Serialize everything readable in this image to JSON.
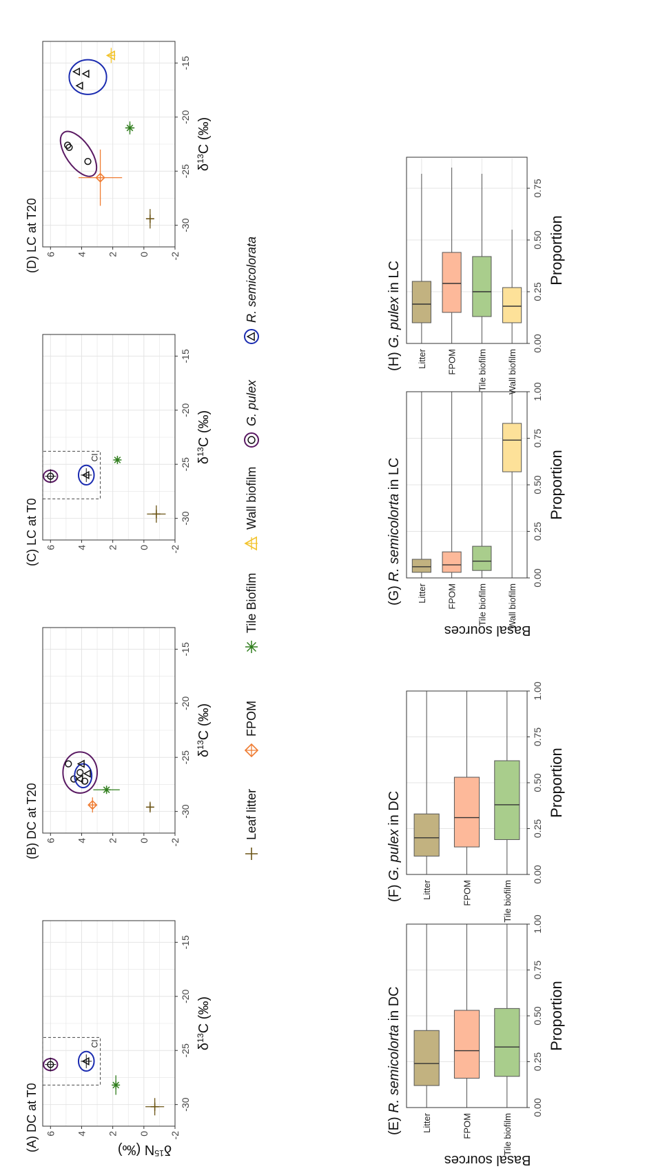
{
  "colors": {
    "litter": "#6b5415",
    "fpom": "#ef7c32",
    "tile": "#2f7d1c",
    "wall": "#f2c32c",
    "rsemi_ellipse": "#1a2bb0",
    "gpulex_ellipse": "#5a1a63",
    "box_litter": "#c2b280",
    "box_fpom": "#fdb99a",
    "box_tile": "#a9cd8c",
    "box_wall": "#fde199"
  },
  "figure": {
    "ylabel": "δ15N (‰)",
    "xlabel": "δ13C (‰)",
    "box_ylabel": "Basal sources",
    "box_xlabel": "Proportion",
    "ci_label": "CI"
  },
  "legend": {
    "items": [
      {
        "key": "litter",
        "label": "Leaf litter"
      },
      {
        "key": "fpom",
        "label": "FPOM"
      },
      {
        "key": "tile",
        "label": "Tile Biofilm"
      },
      {
        "key": "wall",
        "label": "Wall biofilm"
      },
      {
        "key": "gpulex",
        "label": "G. pulex"
      },
      {
        "key": "rsemi",
        "label": "R. semicolorata"
      }
    ]
  },
  "chart_data": [
    {
      "type": "scatter",
      "panel": "A",
      "title": "(A) DC at T0",
      "xlabel": "δ13C (‰)",
      "ylabel": "δ15N (‰)",
      "xlim": [
        -32,
        -13
      ],
      "ylim": [
        -2,
        6.5
      ],
      "xticks": [
        -30,
        -25,
        -20,
        -15
      ],
      "yticks": [
        -2,
        0,
        2,
        4,
        6
      ],
      "ci_box": {
        "x": [
          -28.2,
          -23.8
        ],
        "y": [
          2.8,
          6.5
        ],
        "label": "CI"
      },
      "sources": [
        {
          "name": "Leaf litter",
          "key": "litter",
          "x": -30.2,
          "y": -0.7,
          "xerr": 0.8,
          "yerr": 0.6
        },
        {
          "name": "Tile Biofilm",
          "key": "tile",
          "x": -28.2,
          "y": 1.8,
          "xerr": 0.9,
          "yerr": 0.15
        }
      ],
      "consumers": [
        {
          "name": "G. pulex",
          "key": "gpulex",
          "x": -26.3,
          "y": 6.0,
          "rx": 0.55,
          "ry": 0.45
        },
        {
          "name": "R. semicolorata",
          "key": "rsemi",
          "x": -26.0,
          "y": 3.7,
          "rx": 0.9,
          "ry": 0.5
        }
      ]
    },
    {
      "type": "scatter",
      "panel": "B",
      "title": "(B) DC at T20",
      "xlabel": "δ13C (‰)",
      "xlim": [
        -32,
        -13
      ],
      "ylim": [
        -2,
        6.5
      ],
      "xticks": [
        -30,
        -25,
        -20,
        -15
      ],
      "yticks": [
        -2,
        0,
        2,
        4,
        6
      ],
      "sources": [
        {
          "name": "Leaf litter",
          "key": "litter",
          "x": -29.6,
          "y": -0.4,
          "xerr": 0.5,
          "yerr": 0.15
        },
        {
          "name": "FPOM",
          "key": "fpom",
          "x": -29.4,
          "y": 3.3,
          "xerr": 0.7,
          "yerr": 0.2
        },
        {
          "name": "Tile Biofilm",
          "key": "tile",
          "x": -28.0,
          "y": 2.4,
          "xerr": 0.3,
          "yerr": 0.85
        }
      ],
      "consumers": [
        {
          "name": "G. pulex",
          "key": "gpulex",
          "x": -26.4,
          "y": 4.1,
          "rx": 1.9,
          "ry": 1.1,
          "points": [
            [
              -27.0,
              4.5
            ],
            [
              -27.2,
              3.8
            ],
            [
              -26.4,
              4.1
            ]
          ]
        },
        {
          "name": "R. semicolorata",
          "key": "rsemi",
          "x": -26.7,
          "y": 3.9,
          "rx": 1.1,
          "ry": 0.55,
          "points": [
            [
              -27.0,
              4.1
            ],
            [
              -26.5,
              3.6
            ],
            [
              -25.6,
              4.0
            ]
          ]
        }
      ],
      "extra_gpulex_points": [
        [
          -25.6,
          4.85
        ]
      ]
    },
    {
      "type": "scatter",
      "panel": "C",
      "title": "(C) LC at T0",
      "xlabel": "δ13C (‰)",
      "xlim": [
        -32,
        -13
      ],
      "ylim": [
        -2,
        6.5
      ],
      "xticks": [
        -30,
        -25,
        -20,
        -15
      ],
      "yticks": [
        -2,
        0,
        2,
        4,
        6
      ],
      "ci_box": {
        "x": [
          -28.2,
          -23.8
        ],
        "y": [
          2.8,
          6.5
        ],
        "label": "CI"
      },
      "sources": [
        {
          "name": "Leaf litter",
          "key": "litter",
          "x": -29.6,
          "y": -0.8,
          "xerr": 0.8,
          "yerr": 0.6
        },
        {
          "name": "Tile Biofilm",
          "key": "tile",
          "x": -24.6,
          "y": 1.7,
          "xerr": 0.2,
          "yerr": 0.15
        }
      ],
      "consumers": [
        {
          "name": "G. pulex",
          "key": "gpulex",
          "x": -26.1,
          "y": 6.0,
          "rx": 0.55,
          "ry": 0.45
        },
        {
          "name": "R. semicolorata",
          "key": "rsemi",
          "x": -26.0,
          "y": 3.7,
          "rx": 0.9,
          "ry": 0.5
        }
      ]
    },
    {
      "type": "scatter",
      "panel": "D",
      "title": "(D) LC at T20",
      "xlabel": "δ13C (‰)",
      "xlim": [
        -32,
        -13
      ],
      "ylim": [
        -2,
        6.5
      ],
      "xticks": [
        -30,
        -25,
        -20,
        -15
      ],
      "yticks": [
        -2,
        0,
        2,
        4,
        6
      ],
      "sources": [
        {
          "name": "Leaf litter",
          "key": "litter",
          "x": -29.4,
          "y": -0.4,
          "xerr": 0.9,
          "yerr": 0.1
        },
        {
          "name": "FPOM",
          "key": "fpom",
          "x": -25.6,
          "y": 2.8,
          "xerr": 2.6,
          "yerr": 1.4
        },
        {
          "name": "Tile Biofilm",
          "key": "tile",
          "x": -21.0,
          "y": 0.9,
          "xerr": 0.6,
          "yerr": 0.3
        },
        {
          "name": "Wall biofilm",
          "key": "wall",
          "x": -14.3,
          "y": 2.1,
          "xerr": 0.7,
          "yerr": 0.1
        }
      ],
      "consumers": [
        {
          "name": "G. pulex",
          "key": "gpulex",
          "x": -23.4,
          "y": 4.2,
          "rx": 2.4,
          "ry": 0.8,
          "rotate": -35,
          "points": [
            [
              -22.6,
              4.9
            ],
            [
              -22.8,
              4.8
            ],
            [
              -24.1,
              3.6
            ]
          ]
        },
        {
          "name": "R. semicolorata",
          "key": "rsemi",
          "x": -16.3,
          "y": 3.6,
          "rx": 1.6,
          "ry": 1.2,
          "points": [
            [
              -17.1,
              4.1
            ],
            [
              -15.8,
              4.3
            ],
            [
              -16.0,
              3.7
            ]
          ]
        }
      ]
    },
    {
      "type": "box",
      "panel": "E",
      "title": "(E) R. semicolorta in DC",
      "xlabel": "Proportion",
      "ylabel": "Basal sources",
      "xlim": [
        0,
        1
      ],
      "xticks": [
        0.0,
        0.25,
        0.5,
        0.75,
        1.0
      ],
      "xticklabels": [
        "0.00",
        "0.25",
        "0.50",
        "0.75",
        "1.00"
      ],
      "boxes": [
        {
          "name": "Litter",
          "key": "box_litter",
          "q1": 0.12,
          "median": 0.24,
          "q3": 0.42,
          "min": 0.0,
          "max": 1.0
        },
        {
          "name": "FPOM",
          "key": "box_fpom",
          "q1": 0.16,
          "median": 0.31,
          "q3": 0.53,
          "min": 0.0,
          "max": 1.0
        },
        {
          "name": "Tile biofilm",
          "key": "box_tile",
          "q1": 0.17,
          "median": 0.33,
          "q3": 0.54,
          "min": 0.0,
          "max": 1.0
        }
      ]
    },
    {
      "type": "box",
      "panel": "F",
      "title": "(F) G. pulex in DC",
      "xlabel": "Proportion",
      "xlim": [
        0,
        1
      ],
      "xticks": [
        0.0,
        0.25,
        0.5,
        0.75,
        1.0
      ],
      "xticklabels": [
        "0.00",
        "0.25",
        "0.50",
        "0.75",
        "1.00"
      ],
      "boxes": [
        {
          "name": "Litter",
          "key": "box_litter",
          "q1": 0.1,
          "median": 0.2,
          "q3": 0.33,
          "min": 0.0,
          "max": 1.0
        },
        {
          "name": "FPOM",
          "key": "box_fpom",
          "q1": 0.15,
          "median": 0.31,
          "q3": 0.53,
          "min": 0.0,
          "max": 1.0
        },
        {
          "name": "Tile biofilm",
          "key": "box_tile",
          "q1": 0.19,
          "median": 0.38,
          "q3": 0.62,
          "min": 0.0,
          "max": 1.0
        }
      ]
    },
    {
      "type": "box",
      "panel": "G",
      "title": "(G) R. semicolorta in LC",
      "xlabel": "Proportion",
      "ylabel": "Basal sources",
      "xlim": [
        0,
        1
      ],
      "xticks": [
        0.0,
        0.25,
        0.5,
        0.75,
        1.0
      ],
      "xticklabels": [
        "0.00",
        "0.25",
        "0.50",
        "0.75",
        "1.00"
      ],
      "boxes": [
        {
          "name": "Litter",
          "key": "box_litter",
          "q1": 0.03,
          "median": 0.06,
          "q3": 0.1,
          "min": 0.0,
          "max": 1.0
        },
        {
          "name": "FPOM",
          "key": "box_fpom",
          "q1": 0.03,
          "median": 0.07,
          "q3": 0.14,
          "min": 0.0,
          "max": 1.0
        },
        {
          "name": "Tile biofilm",
          "key": "box_tile",
          "q1": 0.04,
          "median": 0.09,
          "q3": 0.17,
          "min": 0.0,
          "max": 1.0
        },
        {
          "name": "Wall biofilm",
          "key": "box_wall",
          "q1": 0.57,
          "median": 0.74,
          "q3": 0.83,
          "min": 0.0,
          "max": 1.0
        }
      ]
    },
    {
      "type": "box",
      "panel": "H",
      "title": "(H) G. pulex in LC",
      "xlabel": "Proportion",
      "xlim": [
        0,
        0.9
      ],
      "xticks": [
        0.0,
        0.25,
        0.5,
        0.75
      ],
      "xticklabels": [
        "0.00",
        "0.25",
        "0.50",
        "0.75"
      ],
      "boxes": [
        {
          "name": "Litter",
          "key": "box_litter",
          "q1": 0.1,
          "median": 0.19,
          "q3": 0.3,
          "min": 0.0,
          "max": 0.82
        },
        {
          "name": "FPOM",
          "key": "box_fpom",
          "q1": 0.15,
          "median": 0.29,
          "q3": 0.44,
          "min": 0.0,
          "max": 0.85
        },
        {
          "name": "Tile biofilm",
          "key": "box_tile",
          "q1": 0.13,
          "median": 0.25,
          "q3": 0.42,
          "min": 0.0,
          "max": 0.82
        },
        {
          "name": "Wall biofilm",
          "key": "box_wall",
          "q1": 0.1,
          "median": 0.18,
          "q3": 0.27,
          "min": 0.0,
          "max": 0.55
        }
      ]
    }
  ]
}
